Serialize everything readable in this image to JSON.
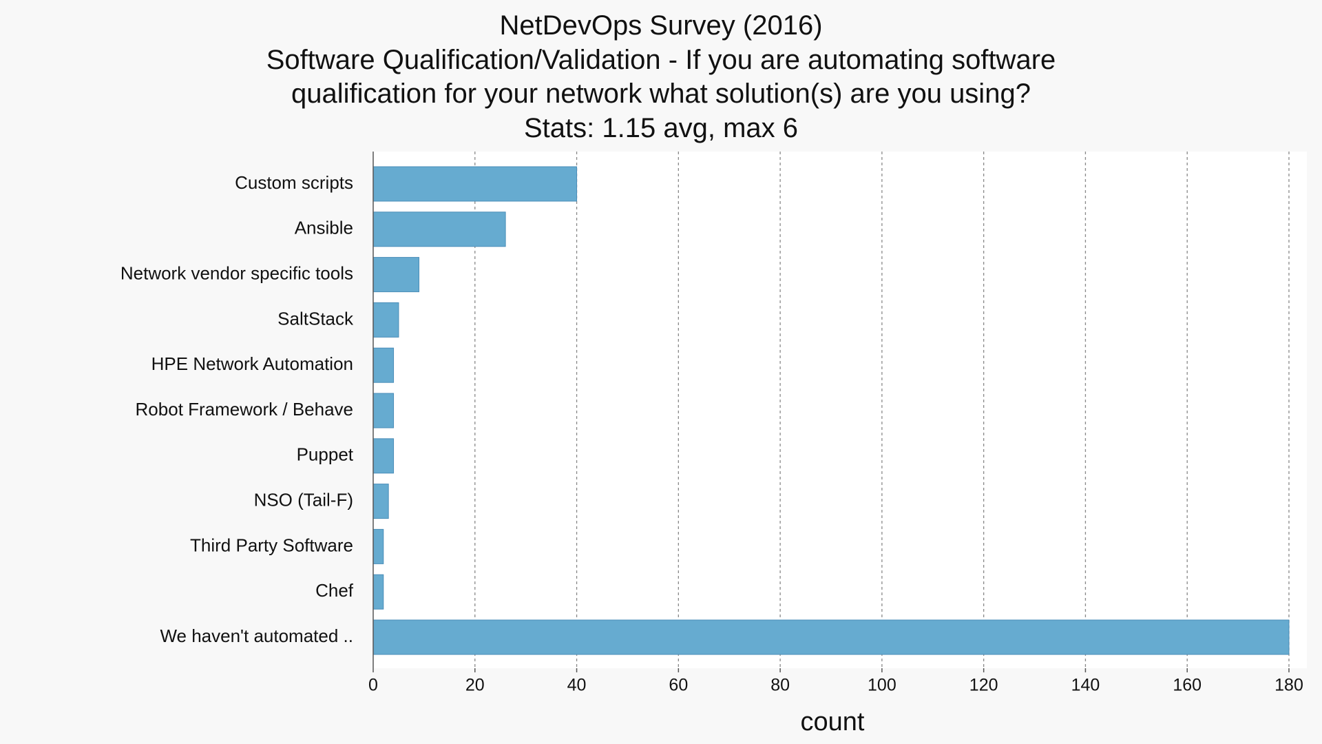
{
  "chart_data": {
    "type": "bar",
    "orientation": "horizontal",
    "title": "NetDevOps Survey (2016)",
    "subtitle": [
      "Software Qualification/Validation - If you are automating software",
      "qualification for your network what solution(s) are you using?",
      "Stats: 1.15 avg, max 6"
    ],
    "xlabel": "count",
    "ylabel": "",
    "categories": [
      "Custom scripts",
      "Ansible",
      "Network vendor specific tools",
      "SaltStack",
      "HPE Network Automation",
      "Robot Framework / Behave",
      "Puppet",
      "NSO (Tail-F)",
      "Third Party Software",
      "Chef",
      "We haven't automated .."
    ],
    "values": [
      40,
      26,
      9,
      5,
      4,
      4,
      4,
      3,
      2,
      2,
      180
    ],
    "xlim": [
      0,
      180
    ],
    "xticks": [
      0,
      20,
      40,
      60,
      80,
      100,
      120,
      140,
      160,
      180
    ],
    "grid": "vertical dashed",
    "bar_color": "#66abd0",
    "background": "#ffffff",
    "page_background": "#f8f8f8"
  }
}
